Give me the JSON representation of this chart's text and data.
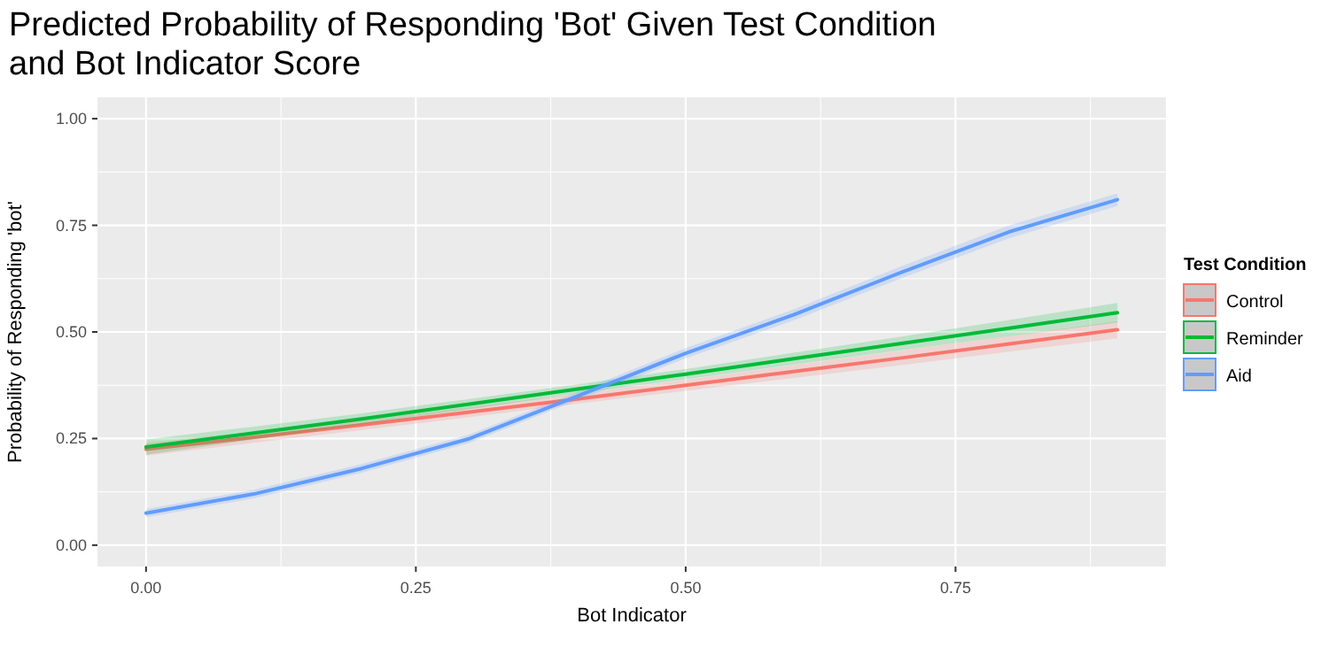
{
  "chart_data": {
    "type": "line",
    "title": "Predicted Probability of Responding 'Bot' Given Test Condition and Bot Indicator Score",
    "xlabel": "Bot Indicator",
    "ylabel": "Probability of Responding 'bot'",
    "legend_title": "Test Condition",
    "legend": "right",
    "grid": true,
    "line_style": "solid",
    "marker": "none",
    "x": [
      0,
      0.1,
      0.2,
      0.3,
      0.4,
      0.5,
      0.6,
      0.7,
      0.8,
      0.9
    ],
    "xlim": [
      -0.045,
      0.945
    ],
    "xticks": [
      {
        "value": 0,
        "label": "0.00"
      },
      {
        "value": 0.25,
        "label": "0.25"
      },
      {
        "value": 0.5,
        "label": "0.50"
      },
      {
        "value": 0.75,
        "label": "0.75"
      }
    ],
    "ylim": [
      -0.05,
      1.05
    ],
    "yticks": [
      {
        "value": 0,
        "label": "0.00"
      },
      {
        "value": 0.25,
        "label": "0.25"
      },
      {
        "value": 0.5,
        "label": "0.50"
      },
      {
        "value": 0.75,
        "label": "0.75"
      },
      {
        "value": 1,
        "label": "1.00"
      }
    ],
    "series": [
      {
        "name": "Control",
        "color": "#f8766d",
        "values": [
          0.225,
          0.253,
          0.282,
          0.312,
          0.343,
          0.375,
          0.407,
          0.439,
          0.472,
          0.505
        ],
        "lower": [
          0.21,
          0.24,
          0.27,
          0.3,
          0.332,
          0.362,
          0.392,
          0.422,
          0.454,
          0.485
        ],
        "upper": [
          0.24,
          0.266,
          0.294,
          0.324,
          0.354,
          0.388,
          0.422,
          0.456,
          0.49,
          0.525
        ]
      },
      {
        "name": "Reminder",
        "color": "#00ba38",
        "values": [
          0.23,
          0.263,
          0.296,
          0.331,
          0.366,
          0.401,
          0.437,
          0.473,
          0.509,
          0.545
        ],
        "lower": [
          0.212,
          0.248,
          0.283,
          0.319,
          0.355,
          0.389,
          0.423,
          0.457,
          0.49,
          0.522
        ],
        "upper": [
          0.248,
          0.278,
          0.309,
          0.343,
          0.377,
          0.413,
          0.451,
          0.489,
          0.528,
          0.568
        ]
      },
      {
        "name": "Aid",
        "color": "#619cff",
        "values": [
          0.075,
          0.12,
          0.18,
          0.25,
          0.35,
          0.45,
          0.54,
          0.64,
          0.735,
          0.81
        ],
        "lower": [
          0.065,
          0.11,
          0.17,
          0.24,
          0.34,
          0.438,
          0.527,
          0.626,
          0.72,
          0.795
        ],
        "upper": [
          0.085,
          0.13,
          0.19,
          0.26,
          0.36,
          0.462,
          0.553,
          0.654,
          0.75,
          0.825
        ]
      }
    ]
  }
}
